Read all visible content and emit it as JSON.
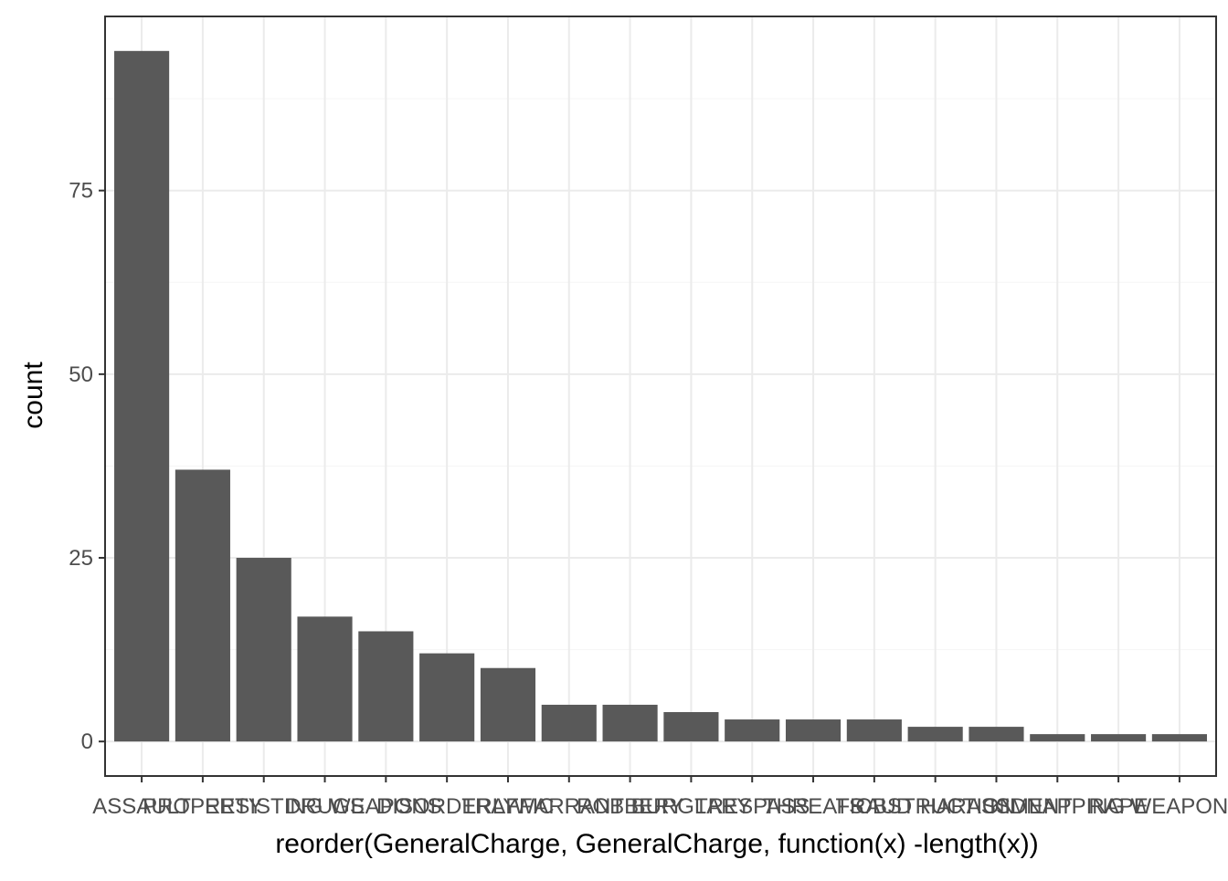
{
  "chart_data": {
    "type": "bar",
    "xlabel": "reorder(GeneralCharge, GeneralCharge, function(x) -length(x))",
    "ylabel": "count",
    "categories": [
      "ASSAULT",
      "PROPERTY",
      "RESISTING",
      "DRUGS",
      "WEAPONS",
      "DISORDERLY",
      "TRAFFIC",
      "WARRANT",
      "ROBBERY",
      "BURGLARY",
      "TRESPASS",
      "THREATS",
      "FRAUD",
      "OBSTRUCTION",
      "HARASSMENT",
      "KIDNAPPING",
      "RAPE",
      "WEAPON"
    ],
    "values": [
      94,
      37,
      25,
      17,
      15,
      12,
      10,
      5,
      5,
      4,
      3,
      3,
      3,
      2,
      2,
      1,
      1,
      1
    ],
    "yticks": [
      0,
      25,
      50,
      75
    ],
    "ylim": [
      -4.7,
      98.7
    ],
    "grid": true,
    "legend": "none",
    "colors": {
      "bar": "#595959",
      "panel_border": "#333333",
      "grid_major": "#ebebeb",
      "grid_minor": "#f5f5f5",
      "tick_label": "#4d4d4d",
      "axis_title": "#000000"
    }
  }
}
